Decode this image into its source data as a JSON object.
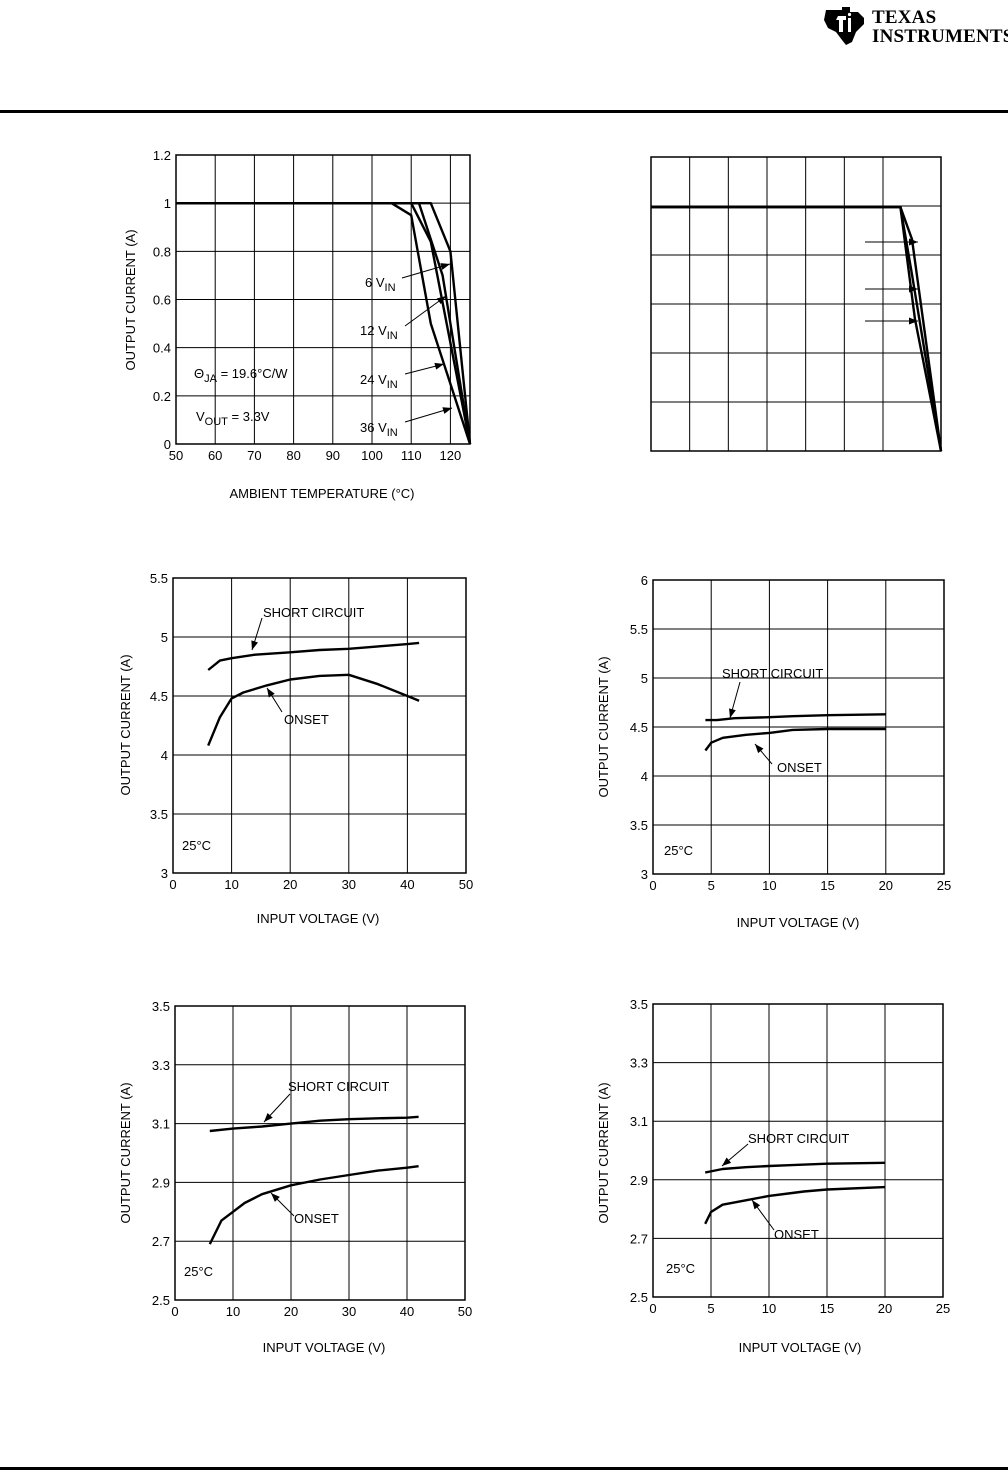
{
  "brand": {
    "line1": "Texas",
    "line2": "Instruments",
    "logo_icon": "ti-logo-icon"
  },
  "chart_data": [
    {
      "type": "line",
      "xlabel": "AMBIENT TEMPERATURE (°C)",
      "ylabel": "OUTPUT CURRENT (A)",
      "xlim": [
        50,
        125
      ],
      "ylim": [
        0,
        1.2
      ],
      "xticks": [
        50,
        60,
        70,
        80,
        90,
        100,
        110,
        120
      ],
      "yticks": [
        0,
        0.2,
        0.4,
        0.6,
        0.8,
        1,
        1.2
      ],
      "grid": true,
      "series": [
        {
          "name": "6 V_IN",
          "x": [
            50,
            115,
            120,
            125
          ],
          "y": [
            1,
            1,
            0.8,
            0
          ]
        },
        {
          "name": "12 V_IN",
          "x": [
            50,
            112,
            118,
            125
          ],
          "y": [
            1,
            1,
            0.7,
            0
          ]
        },
        {
          "name": "24 V_IN",
          "x": [
            50,
            110,
            115,
            125
          ],
          "y": [
            1,
            1,
            0.84,
            0
          ]
        },
        {
          "name": "36 V_IN",
          "x": [
            50,
            105,
            110,
            115,
            125
          ],
          "y": [
            1,
            1,
            0.95,
            0.5,
            0
          ]
        }
      ],
      "annotations": {
        "theta": "Θ",
        "theta_sub": "JA",
        "theta_rest": " = 19.6°C/W",
        "vout": "V",
        "vout_sub": "OUT",
        "vout_rest": " = 3.3V",
        "v_main": [
          "6 V",
          "12 V",
          "24 V",
          "36 V"
        ],
        "v_sub": "IN"
      }
    },
    {
      "type": "line",
      "grid": true,
      "series": [
        {
          "x": [
            0,
            0.86,
            0.9,
            1
          ],
          "y": [
            0.83,
            0.83,
            0.72,
            0
          ]
        },
        {
          "x": [
            0,
            0.86,
            0.9,
            1
          ],
          "y": [
            0.83,
            0.83,
            0.6,
            0
          ]
        },
        {
          "x": [
            0,
            0.86,
            0.91,
            1
          ],
          "y": [
            0.83,
            0.83,
            0.45,
            0
          ]
        }
      ]
    },
    {
      "type": "line",
      "xlabel": "INPUT VOLTAGE (V)",
      "ylabel": "OUTPUT CURRENT (A)",
      "xlim": [
        0,
        50
      ],
      "ylim": [
        3,
        5.5
      ],
      "xticks": [
        0,
        10,
        20,
        30,
        40,
        50
      ],
      "yticks": [
        3,
        3.5,
        4,
        4.5,
        5,
        5.5
      ],
      "grid": true,
      "series": [
        {
          "name": "SHORT CIRCUIT",
          "x": [
            6,
            8,
            10,
            14,
            20,
            25,
            30,
            35,
            40,
            42
          ],
          "y": [
            4.72,
            4.8,
            4.82,
            4.85,
            4.87,
            4.89,
            4.9,
            4.92,
            4.94,
            4.95
          ]
        },
        {
          "name": "ONSET",
          "x": [
            6,
            8,
            10,
            12,
            16,
            20,
            25,
            30,
            35,
            40,
            42
          ],
          "y": [
            4.08,
            4.32,
            4.48,
            4.53,
            4.59,
            4.64,
            4.67,
            4.68,
            4.6,
            4.5,
            4.46
          ]
        }
      ],
      "annotations": {
        "temp": "25°C"
      }
    },
    {
      "type": "line",
      "xlabel": "INPUT VOLTAGE (V)",
      "ylabel": "OUTPUT CURRENT (A)",
      "xlim": [
        0,
        25
      ],
      "ylim": [
        3,
        6
      ],
      "xticks": [
        0,
        5,
        10,
        15,
        20,
        25
      ],
      "yticks": [
        3,
        3.5,
        4,
        4.5,
        5,
        5.5,
        6
      ],
      "grid": true,
      "series": [
        {
          "name": "SHORT CIRCUIT",
          "x": [
            4.5,
            5.5,
            7,
            10,
            12,
            15,
            20
          ],
          "y": [
            4.57,
            4.57,
            4.59,
            4.6,
            4.61,
            4.62,
            4.63
          ]
        },
        {
          "name": "ONSET",
          "x": [
            4.5,
            5,
            6,
            8,
            10,
            12,
            15,
            20
          ],
          "y": [
            4.26,
            4.34,
            4.39,
            4.42,
            4.44,
            4.47,
            4.48,
            4.48
          ]
        }
      ],
      "annotations": {
        "temp": "25°C"
      }
    },
    {
      "type": "line",
      "xlabel": "INPUT VOLTAGE (V)",
      "ylabel": "OUTPUT CURRENT (A)",
      "xlim": [
        0,
        50
      ],
      "ylim": [
        2.5,
        3.5
      ],
      "xticks": [
        0,
        10,
        20,
        30,
        40,
        50
      ],
      "yticks": [
        2.5,
        2.7,
        2.9,
        3.1,
        3.3,
        3.5
      ],
      "grid": true,
      "series": [
        {
          "name": "SHORT CIRCUIT",
          "x": [
            6,
            10,
            15,
            20,
            25,
            30,
            35,
            40,
            42
          ],
          "y": [
            3.075,
            3.083,
            3.09,
            3.1,
            3.11,
            3.115,
            3.118,
            3.12,
            3.123
          ]
        },
        {
          "name": "ONSET",
          "x": [
            6,
            8,
            10,
            12,
            15,
            20,
            25,
            30,
            35,
            40,
            42
          ],
          "y": [
            2.69,
            2.77,
            2.8,
            2.83,
            2.86,
            2.89,
            2.91,
            2.925,
            2.94,
            2.95,
            2.955
          ]
        }
      ],
      "annotations": {
        "temp": "25°C"
      }
    },
    {
      "type": "line",
      "xlabel": "INPUT VOLTAGE (V)",
      "ylabel": "OUTPUT CURRENT (A)",
      "xlim": [
        0,
        25
      ],
      "ylim": [
        2.5,
        3.5
      ],
      "xticks": [
        0,
        5,
        10,
        15,
        20,
        25
      ],
      "yticks": [
        2.5,
        2.7,
        2.9,
        3.1,
        3.3,
        3.5
      ],
      "grid": true,
      "series": [
        {
          "name": "SHORT CIRCUIT",
          "x": [
            4.5,
            6,
            8,
            10,
            12,
            15,
            20
          ],
          "y": [
            2.925,
            2.937,
            2.943,
            2.947,
            2.95,
            2.955,
            2.958
          ]
        },
        {
          "name": "ONSET",
          "x": [
            4.5,
            5,
            6,
            8,
            10,
            12,
            13,
            15,
            20
          ],
          "y": [
            2.75,
            2.79,
            2.815,
            2.83,
            2.845,
            2.855,
            2.86,
            2.867,
            2.875
          ]
        }
      ],
      "annotations": {
        "temp": "25°C"
      }
    }
  ]
}
